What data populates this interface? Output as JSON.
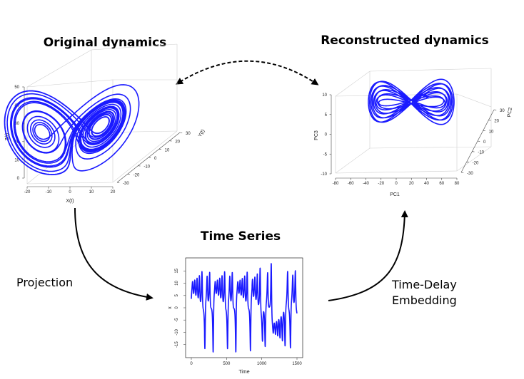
{
  "titles": {
    "original": "Original dynamics",
    "reconstructed": "Reconstructed dynamics",
    "time_series": "Time Series"
  },
  "labels": {
    "projection": "Projection",
    "embedding_line1": "Time-Delay",
    "embedding_line2": "Embedding"
  },
  "original_plot": {
    "x_label": "X(t)",
    "y_label": "Y(t)",
    "z_label": "Z(t)",
    "x_ticks": [
      "-20",
      "-10",
      "0",
      "10",
      "20"
    ],
    "y_ticks": [
      "-30",
      "-20",
      "-10",
      "0",
      "10",
      "20",
      "30"
    ],
    "z_ticks": [
      "0",
      "10",
      "20",
      "30",
      "40",
      "50"
    ]
  },
  "reconstructed_plot": {
    "x_label": "PC1",
    "y_label": "PC2",
    "z_label": "PC3",
    "x_ticks": [
      "-80",
      "-60",
      "-40",
      "-20",
      "0",
      "20",
      "40",
      "60",
      "80"
    ],
    "y_ticks": [
      "-30",
      "-20",
      "-10",
      "0",
      "10",
      "20",
      "30"
    ],
    "z_ticks": [
      "-10",
      "-5",
      "0",
      "5",
      "10"
    ]
  },
  "time_series_plot": {
    "x_label": "Time",
    "y_label": "x",
    "x_ticks": [
      "0",
      "500",
      "1000",
      "1500"
    ],
    "y_ticks": [
      "-15",
      "-10",
      "-5",
      "0",
      "5",
      "10",
      "15"
    ],
    "x_range": [
      0,
      1500
    ],
    "y_range": [
      -18,
      18
    ]
  },
  "colors": {
    "trajectory": "#1a1aff",
    "arrow": "#000000"
  }
}
